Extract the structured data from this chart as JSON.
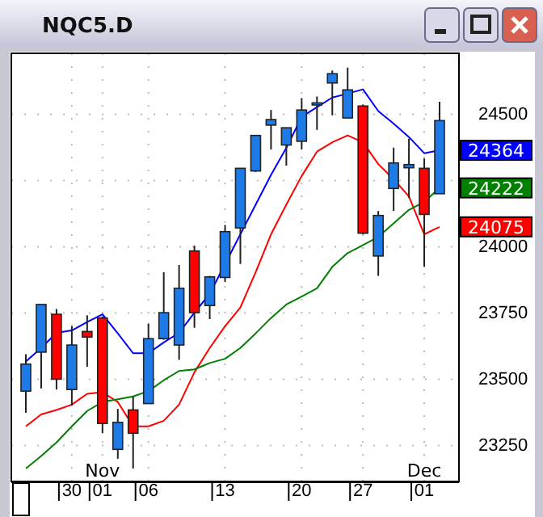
{
  "chart_data": {
    "type": "candlestick",
    "title": "NQC5.D",
    "categories": [
      null,
      null,
      null,
      "30",
      null,
      "01",
      null,
      null,
      "06",
      null,
      null,
      null,
      null,
      "13",
      null,
      null,
      null,
      null,
      "20",
      null,
      null,
      null,
      "27",
      null,
      null,
      null,
      "01",
      null
    ],
    "ohlc": [
      [
        23455,
        23594,
        23373,
        23557
      ],
      [
        23602,
        23782,
        23465,
        23782
      ],
      [
        23745,
        23765,
        23461,
        23500
      ],
      [
        23461,
        23700,
        23400,
        23629
      ],
      [
        23680,
        23741,
        23547,
        23659
      ],
      [
        23731,
        23737,
        23296,
        23333
      ],
      [
        23235,
        23388,
        23200,
        23337
      ],
      [
        23384,
        23435,
        23163,
        23296
      ],
      [
        23408,
        23710,
        23408,
        23653
      ],
      [
        23653,
        23904,
        23649,
        23751
      ],
      [
        23629,
        23931,
        23573,
        23843
      ],
      [
        23984,
        24004,
        23694,
        23751
      ],
      [
        23778,
        23890,
        23727,
        23886
      ],
      [
        23884,
        24082,
        23867,
        24057
      ],
      [
        24071,
        24296,
        23935,
        24296
      ],
      [
        24286,
        24420,
        24282,
        24420
      ],
      [
        24459,
        24516,
        24367,
        24480
      ],
      [
        24384,
        24449,
        24306,
        24449
      ],
      [
        24398,
        24561,
        24367,
        24516
      ],
      [
        24535,
        24567,
        24441,
        24543
      ],
      [
        24618,
        24665,
        24496,
        24653
      ],
      [
        24486,
        24676,
        24486,
        24592
      ],
      [
        24531,
        24537,
        24047,
        24051
      ],
      [
        23965,
        24135,
        23890,
        24118
      ],
      [
        24220,
        24374,
        24135,
        24316
      ],
      [
        24298,
        24408,
        24184,
        24310
      ],
      [
        24296,
        24333,
        23924,
        24122
      ],
      [
        24200,
        24547,
        24200,
        24476
      ]
    ],
    "colors": [
      "#1e7ae6",
      "#1e7ae6",
      "#ff0000",
      "#1e7ae6",
      "#ff0000",
      "#ff0000",
      "#1e7ae6",
      "#ff0000",
      "#1e7ae6",
      "#1e7ae6",
      "#1e7ae6",
      "#ff0000",
      "#1e7ae6",
      "#1e7ae6",
      "#1e7ae6",
      "#1e7ae6",
      "#1e7ae6",
      "#1e7ae6",
      "#1e7ae6",
      "#1e7ae6",
      "#1e7ae6",
      "#1e7ae6",
      "#ff0000",
      "#1e7ae6",
      "#1e7ae6",
      "#1e7ae6",
      "#ff0000",
      "#1e7ae6"
    ],
    "series": [
      {
        "type": "line",
        "color": "#0000ff",
        "values": [
          23567,
          23618,
          23675,
          23684,
          23716,
          23745,
          23673,
          23598,
          23598,
          23639,
          23675,
          23751,
          23822,
          null,
          24047,
          24159,
          24271,
          24373,
          24490,
          24527,
          24563,
          24578,
          24594,
          24512,
          24465,
          24414,
          24353,
          24364
        ],
        "value_labels": [
          null,
          null,
          null,
          null,
          null,
          null,
          null,
          null,
          null,
          null,
          null,
          null,
          null,
          null,
          null,
          null,
          null,
          null,
          null,
          null,
          null,
          null,
          null,
          null,
          null,
          null,
          null,
          "24364"
        ]
      },
      {
        "type": "line",
        "color": "#ff0000",
        "values": [
          23322,
          23367,
          23384,
          23404,
          23445,
          23451,
          23414,
          23322,
          23322,
          23343,
          23404,
          23526,
          23618,
          23700,
          23771,
          23904,
          24047,
          24159,
          24267,
          24359,
          24394,
          24420,
          24394,
          24312,
          24255,
          24190,
          24047,
          24075
        ],
        "value_labels": [
          null,
          null,
          null,
          null,
          null,
          null,
          null,
          null,
          null,
          null,
          null,
          null,
          null,
          null,
          null,
          null,
          null,
          null,
          null,
          null,
          null,
          null,
          null,
          null,
          null,
          null,
          null,
          "24075"
        ]
      },
      {
        "type": "line",
        "color": "#008000",
        "values": [
          23163,
          23210,
          23261,
          23322,
          23380,
          23414,
          23424,
          23435,
          23455,
          23496,
          23531,
          23537,
          23561,
          23577,
          23618,
          23673,
          23731,
          23782,
          23812,
          23843,
          23924,
          23976,
          24006,
          24037,
          24088,
          24139,
          24169,
          24222
        ],
        "value_labels": [
          null,
          null,
          null,
          null,
          null,
          null,
          null,
          null,
          null,
          null,
          null,
          null,
          null,
          null,
          null,
          null,
          null,
          null,
          null,
          null,
          null,
          null,
          null,
          null,
          null,
          null,
          null,
          "24222"
        ]
      }
    ],
    "ylim": [
      23114,
      24730
    ],
    "yticks": [
      23250,
      23500,
      23750,
      24000,
      {
        "value": 24250,
        "label": null
      },
      24500
    ],
    "grid": true,
    "annotations": [
      "Nov",
      "Dec"
    ]
  }
}
